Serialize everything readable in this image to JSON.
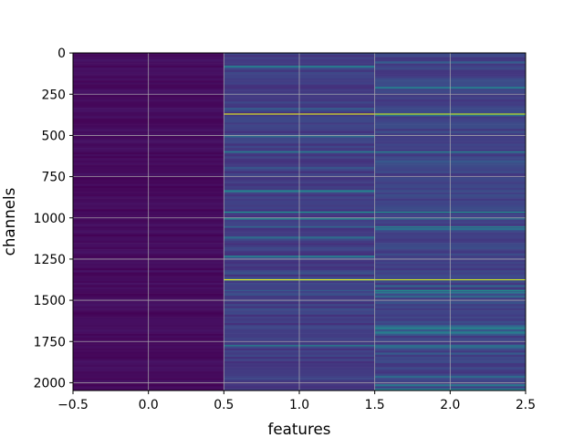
{
  "chart_data": {
    "type": "heatmap",
    "title": "",
    "xlabel": "features",
    "ylabel": "channels",
    "colormap": "viridis",
    "columns": [
      0,
      1,
      2
    ],
    "rows": 2048,
    "xlim": [
      -0.5,
      2.5
    ],
    "ylim": [
      2047.5,
      -0.5
    ],
    "xticks": [
      -0.5,
      0.0,
      0.5,
      1.0,
      1.5,
      2.0,
      2.5
    ],
    "xtick_labels": [
      "−0.5",
      "0.0",
      "0.5",
      "1.0",
      "1.5",
      "2.0",
      "2.5"
    ],
    "yticks": [
      0,
      250,
      500,
      750,
      1000,
      1250,
      1500,
      1750,
      2000
    ],
    "ytick_labels": [
      "0",
      "250",
      "500",
      "750",
      "1000",
      "1250",
      "1500",
      "1750",
      "2000"
    ],
    "grid": true,
    "column_levels": [
      0.03,
      0.18,
      0.2
    ],
    "bright_rows": [
      {
        "row": 370,
        "values": [
          0.03,
          0.95,
          0.9
        ]
      },
      {
        "row": 1375,
        "values": [
          0.03,
          0.97,
          0.92
        ]
      },
      {
        "row": 600,
        "values": [
          0.03,
          0.45,
          0.45
        ]
      },
      {
        "row": 965,
        "values": [
          0.03,
          0.5,
          0.5
        ]
      },
      {
        "row": 1055,
        "values": [
          0.03,
          0.35,
          0.45
        ]
      },
      {
        "row": 1440,
        "values": [
          0.03,
          0.3,
          0.5
        ]
      },
      {
        "row": 1775,
        "values": [
          0.03,
          0.45,
          0.4
        ]
      }
    ]
  }
}
